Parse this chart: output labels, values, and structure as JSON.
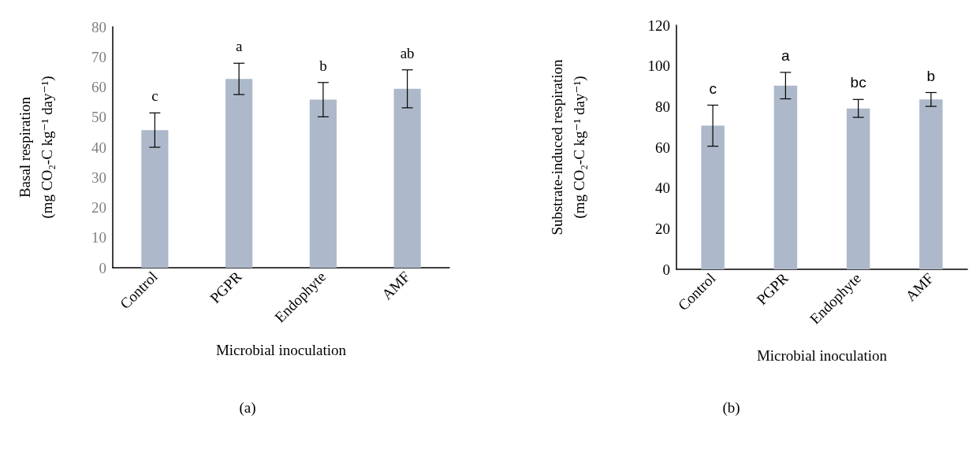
{
  "chart_data": [
    {
      "type": "bar",
      "ylabel": "Basal respiration\n(mg CO₂-C kg⁻¹ day⁻¹)",
      "xlabel": "Microbial inoculation",
      "categories": [
        "Control",
        "PGPR",
        "Endophyte",
        "AMF"
      ],
      "values": [
        45.7,
        62.7,
        55.8,
        59.4
      ],
      "errors": [
        5.7,
        5.2,
        5.7,
        6.3
      ],
      "value_labels": [
        "c",
        "a",
        "b",
        "ab"
      ],
      "color": "#adb9ca",
      "ylim": [
        0,
        80
      ],
      "yticks": [
        0,
        10,
        20,
        30,
        40,
        50,
        60,
        70,
        80
      ],
      "grid": false,
      "annotations": [
        "(a)"
      ]
    },
    {
      "type": "bar",
      "ylabel": "Substrate-induced respiration\n(mg CO₂-C kg⁻¹ day⁻¹)",
      "xlabel": "Microbial inoculation",
      "categories": [
        "Control",
        "PGPR",
        "Endophyte",
        "AMF"
      ],
      "values": [
        70.6,
        90.3,
        79.1,
        83.5
      ],
      "errors": [
        10.1,
        6.5,
        4.4,
        3.4
      ],
      "value_labels": [
        "c",
        "a",
        "bc",
        "b"
      ],
      "color": "#adb9ca",
      "ylim": [
        0,
        120
      ],
      "yticks": [
        0,
        20,
        40,
        60,
        80,
        100,
        120
      ],
      "grid": false,
      "annotations": [
        "(b)"
      ]
    }
  ]
}
